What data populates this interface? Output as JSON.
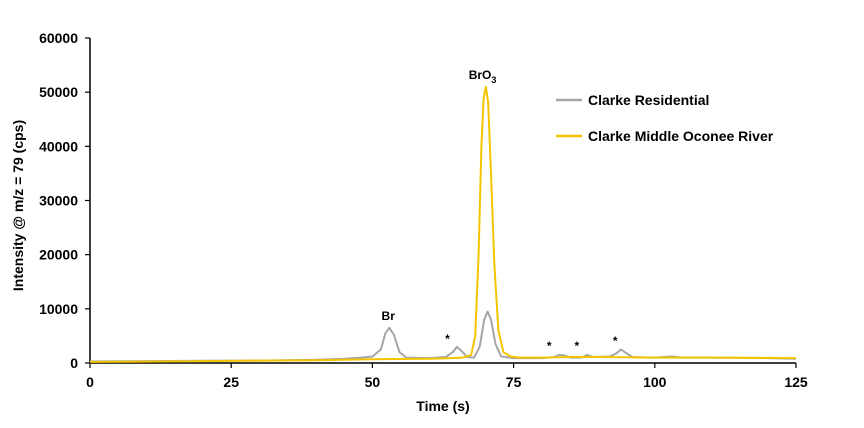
{
  "chart_data": {
    "type": "line",
    "xlabel": "Time (s)",
    "ylabel": "Intensity @ m/z = 79 (cps)",
    "xlim": [
      0,
      125
    ],
    "ylim": [
      0,
      60000
    ],
    "x_ticks": [
      "0",
      "25",
      "50",
      "75",
      "100",
      "125"
    ],
    "y_ticks": [
      "0",
      "10000",
      "20000",
      "30000",
      "40000",
      "50000",
      "60000"
    ],
    "grid": false,
    "legend_position": "right",
    "series": [
      {
        "name": "Clarke Residential",
        "color": "#a6a6a6",
        "points": [
          [
            0,
            300
          ],
          [
            10,
            350
          ],
          [
            20,
            400
          ],
          [
            30,
            450
          ],
          [
            40,
            600
          ],
          [
            45,
            800
          ],
          [
            48,
            1000
          ],
          [
            50,
            1200
          ],
          [
            51.5,
            2500
          ],
          [
            52.3,
            5500
          ],
          [
            53,
            6500
          ],
          [
            53.8,
            5200
          ],
          [
            54.8,
            2000
          ],
          [
            56,
            1000
          ],
          [
            60,
            900
          ],
          [
            63,
            1100
          ],
          [
            64.2,
            2000
          ],
          [
            65,
            3000
          ],
          [
            65.8,
            2200
          ],
          [
            66.8,
            1100
          ],
          [
            68,
            1000
          ],
          [
            69,
            3000
          ],
          [
            69.8,
            8000
          ],
          [
            70.4,
            9500
          ],
          [
            71,
            8000
          ],
          [
            71.8,
            3500
          ],
          [
            72.8,
            1200
          ],
          [
            75,
            900
          ],
          [
            80,
            900
          ],
          [
            82.2,
            1100
          ],
          [
            83,
            1500
          ],
          [
            84,
            1400
          ],
          [
            85,
            1000
          ],
          [
            87,
            1000
          ],
          [
            88,
            1500
          ],
          [
            89,
            1100
          ],
          [
            92,
            1200
          ],
          [
            93.2,
            1800
          ],
          [
            94,
            2500
          ],
          [
            95,
            1800
          ],
          [
            96,
            1100
          ],
          [
            100,
            1000
          ],
          [
            103,
            1200
          ],
          [
            105,
            1000
          ],
          [
            110,
            1000
          ],
          [
            120,
            900
          ],
          [
            125,
            800
          ]
        ]
      },
      {
        "name": "Clarke Middle Oconee River",
        "color": "#f5c400",
        "points": [
          [
            0,
            200
          ],
          [
            10,
            250
          ],
          [
            20,
            350
          ],
          [
            30,
            450
          ],
          [
            40,
            500
          ],
          [
            50,
            700
          ],
          [
            60,
            800
          ],
          [
            64,
            900
          ],
          [
            66,
            1000
          ],
          [
            67.5,
            1500
          ],
          [
            68.2,
            5000
          ],
          [
            68.8,
            20000
          ],
          [
            69.3,
            40000
          ],
          [
            69.7,
            49000
          ],
          [
            70.1,
            51000
          ],
          [
            70.5,
            48000
          ],
          [
            71,
            35000
          ],
          [
            71.6,
            18000
          ],
          [
            72.3,
            6000
          ],
          [
            73.2,
            2000
          ],
          [
            74.5,
            1200
          ],
          [
            76,
            1000
          ],
          [
            80,
            1000
          ],
          [
            85,
            1100
          ],
          [
            90,
            1100
          ],
          [
            95,
            1050
          ],
          [
            100,
            1000
          ],
          [
            110,
            1000
          ],
          [
            120,
            950
          ],
          [
            125,
            900
          ]
        ]
      }
    ],
    "annotations": [
      {
        "text": "Br",
        "x": 52.8,
        "y": 6500
      },
      {
        "text": "*",
        "x": 63.3,
        "y": 3000
      },
      {
        "text": "BrO",
        "sub": "3",
        "x": 69.5,
        "y": 51000
      },
      {
        "text": "*",
        "x": 81.3,
        "y": 1700
      },
      {
        "text": "*",
        "x": 86.2,
        "y": 1700
      },
      {
        "text": "*",
        "x": 93,
        "y": 2600
      }
    ]
  }
}
